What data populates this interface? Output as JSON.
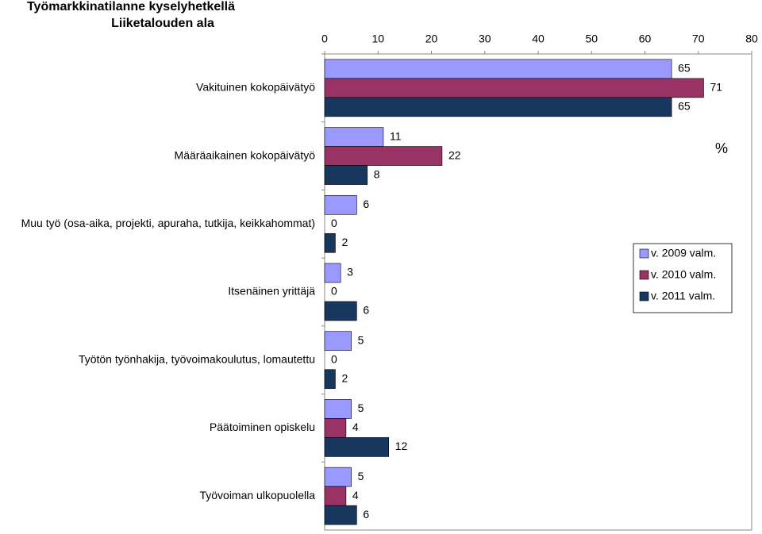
{
  "chart_data": {
    "type": "bar",
    "orientation": "horizontal",
    "title": "Työmarkkinatilanne kyselyhetkellä",
    "subtitle": "Liiketalouden ala",
    "annotation": "%",
    "categories": [
      "Vakituinen kokopäivätyö",
      "Määräaikainen kokopäivätyö",
      "Muu työ (osa-aika, projekti, apuraha, tutkija, keikkahommat)",
      "Itsenäinen yrittäjä",
      "Työtön työnhakija, työvoimakoulutus, lomautettu",
      "Päätoiminen opiskelu",
      "Työvoiman ulkopuolella"
    ],
    "series": [
      {
        "name": "v. 2009 valm.",
        "color": "#9999ff",
        "values": [
          65,
          11,
          6,
          3,
          5,
          5,
          5
        ]
      },
      {
        "name": "v. 2010 valm.",
        "color": "#993366",
        "values": [
          71,
          22,
          0,
          0,
          0,
          4,
          4
        ]
      },
      {
        "name": "v. 2011 valm.",
        "color": "#17375e",
        "values": [
          65,
          8,
          2,
          6,
          2,
          12,
          6
        ]
      }
    ],
    "xlim": [
      0,
      80
    ],
    "xticks": [
      0,
      10,
      20,
      30,
      40,
      50,
      60,
      70,
      80
    ],
    "grid": false,
    "legend": "right"
  }
}
